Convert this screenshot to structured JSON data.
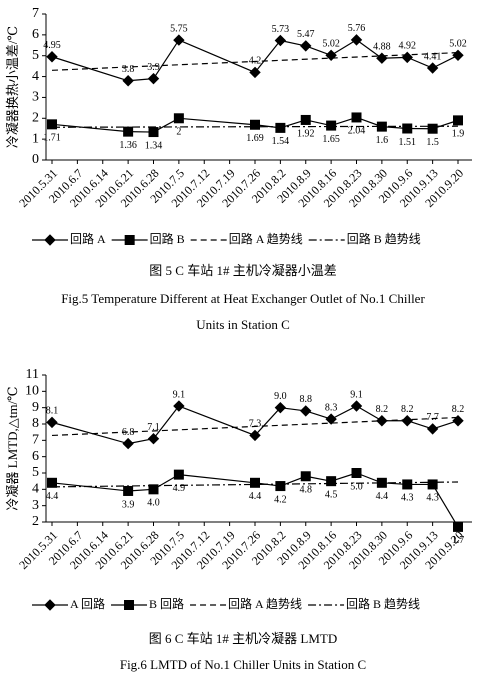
{
  "chart_data": [
    {
      "type": "line",
      "y_label": "冷凝器换热小温差/℃",
      "categories": [
        "2010.5.31",
        "2010.6.7",
        "2010.6.14",
        "2010.6.21",
        "2010.6.28",
        "2010.7.5",
        "2010.7.12",
        "2010.7.19",
        "2010.7.26",
        "2010.8.2",
        "2010.8.9",
        "2010.8.16",
        "2010.8.23",
        "2010.8.30",
        "2010.9.6",
        "2010.9.13",
        "2010.9.20"
      ],
      "series": [
        {
          "name": "回路 A",
          "color": "#000000",
          "marker": "diamond",
          "dash": "solid",
          "values": [
            4.95,
            null,
            null,
            3.8,
            3.9,
            5.75,
            null,
            null,
            4.2,
            5.73,
            5.47,
            5.02,
            5.76,
            4.88,
            4.92,
            4.41,
            5.02
          ]
        },
        {
          "name": "回路 B",
          "color": "#000000",
          "marker": "square",
          "dash": "solid",
          "values": [
            1.71,
            null,
            null,
            1.36,
            1.34,
            2,
            null,
            null,
            1.69,
            1.54,
            1.92,
            1.65,
            2.04,
            1.6,
            1.51,
            1.5,
            1.9
          ]
        },
        {
          "name": "回路 A 趋势线",
          "color": "#000000",
          "marker": null,
          "dash": "dashed",
          "values": [
            4.3,
            null,
            null,
            null,
            null,
            null,
            null,
            null,
            null,
            null,
            null,
            null,
            null,
            null,
            null,
            null,
            5.15
          ]
        },
        {
          "name": "回路 B 趋势线",
          "color": "#000000",
          "marker": null,
          "dash": "dashdot",
          "values": [
            1.57,
            null,
            null,
            null,
            null,
            null,
            null,
            null,
            null,
            null,
            null,
            null,
            null,
            null,
            null,
            null,
            1.62
          ]
        }
      ],
      "ylim": [
        0,
        7
      ],
      "yticks": [
        0,
        1,
        2,
        3,
        4,
        5,
        6,
        7
      ],
      "grid": false,
      "legend": "bottom",
      "caption": "图 5   C 车站 1# 主机冷凝器小温差",
      "caption_en": [
        "Fig.5  Temperature Different at Heat Exchanger Outlet of No.1 Chiller",
        "Units in Station C"
      ]
    },
    {
      "type": "line",
      "y_label": "冷凝器 LMTD,△tm/℃",
      "categories": [
        "2010.5.31",
        "2010.6.7",
        "2010.6.14",
        "2010.6.21",
        "2010.6.28",
        "2010.7.5",
        "2010.7.12",
        "2010.7.19",
        "2010.7.26",
        "2010.8.2",
        "2010.8.9",
        "2010.8.16",
        "2010.8.23",
        "2010.8.30",
        "2010.9.6",
        "2010.9.13",
        "2010.9.20"
      ],
      "series": [
        {
          "name": "A 回路",
          "color": "#000000",
          "marker": "diamond",
          "dash": "solid",
          "values": [
            8.1,
            null,
            null,
            6.8,
            7.1,
            9.1,
            null,
            null,
            7.3,
            9.0,
            8.8,
            8.3,
            9.1,
            8.2,
            8.2,
            7.7,
            8.2
          ],
          "value_labels": [
            "8.1",
            null,
            null,
            "6.8",
            "7.1",
            "9.1",
            null,
            null,
            "7.3",
            "9.0",
            "8.8",
            "8.3",
            "9.1",
            "8.2",
            "8.2",
            "7.7",
            "8.2"
          ]
        },
        {
          "name": "B 回路",
          "color": "#000000",
          "marker": "square",
          "dash": "solid",
          "values": [
            4.4,
            null,
            null,
            3.9,
            4.0,
            4.9,
            null,
            null,
            4.4,
            4.2,
            4.8,
            4.5,
            5.0,
            4.4,
            4.3,
            4.3,
            1.7
          ],
          "value_labels": [
            "4.4",
            null,
            null,
            "3.9",
            "4.0",
            "4.9",
            null,
            null,
            "4.4",
            "4.2",
            "4.8",
            "4.5",
            "5.0",
            "4.4",
            "4.3",
            "4.3",
            "1.7"
          ]
        },
        {
          "name": "回路 A 趋势线",
          "color": "#000000",
          "marker": null,
          "dash": "dashed",
          "values": [
            7.3,
            null,
            null,
            null,
            null,
            null,
            null,
            null,
            null,
            null,
            null,
            null,
            null,
            null,
            null,
            null,
            8.4
          ]
        },
        {
          "name": "回路 B 趋势线",
          "color": "#000000",
          "marker": null,
          "dash": "dashdot",
          "values": [
            4.15,
            null,
            null,
            null,
            null,
            null,
            null,
            null,
            null,
            null,
            null,
            null,
            null,
            null,
            null,
            null,
            4.45
          ]
        }
      ],
      "ylim": [
        2,
        11
      ],
      "yticks": [
        2,
        3,
        4,
        5,
        6,
        7,
        8,
        9,
        10,
        11
      ],
      "grid": false,
      "legend": "bottom",
      "caption": "图 6   C 车站 1# 主机冷凝器 LMTD",
      "caption_en": [
        "Fig.6  LMTD of No.1 Chiller Units in Station C"
      ]
    }
  ]
}
